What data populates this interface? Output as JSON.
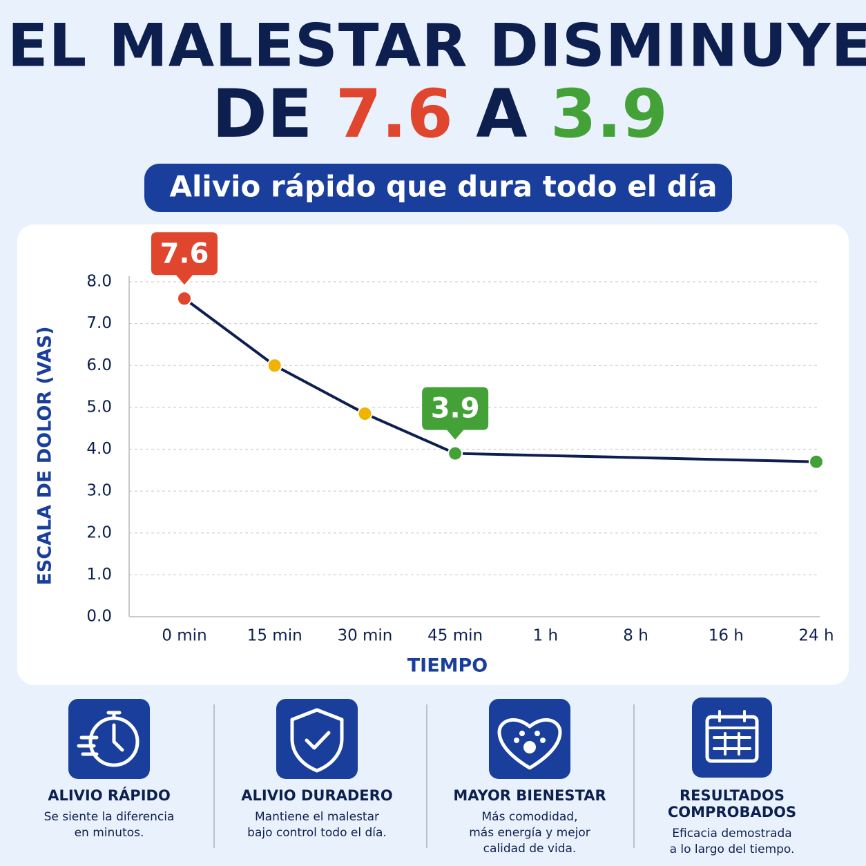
{
  "title_line1": "EL MALESTAR DISMINUYE",
  "title_line2": [
    {
      "text": "DE ",
      "color": "#0d1f4f"
    },
    {
      "text": "7.6",
      "color": "#e0452e"
    },
    {
      "text": " A ",
      "color": "#0d1f4f"
    },
    {
      "text": "3.9",
      "color": "#44a138"
    }
  ],
  "subtitle": "Alivio rápido que dura todo el día",
  "chart_data": {
    "type": "line",
    "y_label": "ESCALA DE DOLOR (VAS)",
    "x_label": "TIEMPO",
    "categories": [
      "0 min",
      "15 min",
      "30 min",
      "45 min",
      "1 h",
      "8 h",
      "16 h",
      "24 h"
    ],
    "series": [
      {
        "name": "VAS",
        "color": "#0d1f4f",
        "values": [
          7.6,
          6.0,
          4.85,
          3.9,
          null,
          null,
          null,
          3.7
        ],
        "point_colors": [
          "#e0452e",
          "#f0b400",
          "#f0b400",
          "#44a138",
          null,
          null,
          null,
          "#44a138"
        ],
        "value_labels": [
          "7.6",
          null,
          null,
          "3.9",
          null,
          null,
          null,
          null
        ]
      }
    ],
    "ylim": [
      0,
      8
    ],
    "yticks": [
      {
        "value": 0,
        "label": "0.0"
      },
      {
        "value": 1,
        "label": "1.0"
      },
      {
        "value": 2,
        "label": "2.0"
      },
      {
        "value": 3,
        "label": "3.0"
      },
      {
        "value": 4,
        "label": "4.0"
      },
      {
        "value": 5,
        "label": "5.0"
      },
      {
        "value": 6,
        "label": "6.0"
      },
      {
        "value": 7,
        "label": "7.0"
      },
      {
        "value": 8,
        "label": "8.0"
      }
    ],
    "grid": true
  },
  "features": [
    {
      "title": "ALIVIO RÁPIDO",
      "lines": [
        "Se siente la diferencia",
        "en minutos."
      ]
    },
    {
      "title": "ALIVIO DURADERO",
      "lines": [
        "Mantiene el malestar",
        "bajo control todo el día."
      ]
    },
    {
      "title": "MAYOR BIENESTAR",
      "lines": [
        "Más comodidad,",
        "más energía y mejor",
        "calidad de vida."
      ]
    },
    {
      "title": [
        "RESULTADOS",
        "COMPROBADOS"
      ],
      "lines": [
        "Eficacia demostrada",
        "a lo largo del tiempo."
      ]
    }
  ]
}
